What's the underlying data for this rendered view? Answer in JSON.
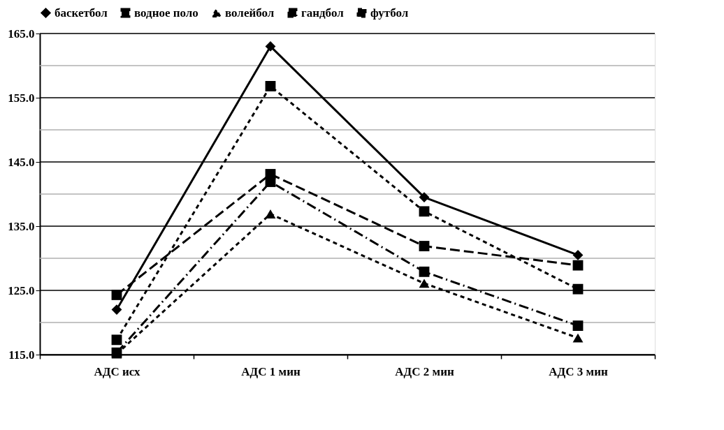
{
  "chart_data": {
    "type": "line",
    "categories": [
      "АДС исх",
      "АДС 1 мин",
      "АДС 2 мин",
      "АДС 3 мин"
    ],
    "series": [
      {
        "name": "баскетбол",
        "color": "#000000",
        "marker": "diamond",
        "line_style": "solid",
        "values": [
          122.0,
          163.0,
          139.5,
          130.5
        ]
      },
      {
        "name": "водное поло",
        "color": "#000000",
        "marker": "square",
        "line_style": "dashed",
        "values": [
          124.3,
          143.1,
          131.9,
          128.9
        ]
      },
      {
        "name": "волейбол",
        "color": "#000000",
        "marker": "triangle",
        "line_style": "dotted",
        "values": [
          115.1,
          136.9,
          126.1,
          117.6
        ]
      },
      {
        "name": "гандбол",
        "color": "#000000",
        "marker": "square",
        "line_style": "dashdot",
        "values": [
          115.3,
          141.9,
          127.9,
          119.5
        ]
      },
      {
        "name": "футбол",
        "color": "#000000",
        "marker": "square",
        "line_style": "dotted",
        "values": [
          117.3,
          156.8,
          137.3,
          125.2
        ]
      }
    ],
    "ylim": [
      115,
      165
    ],
    "yticks": [
      {
        "value": 115,
        "label": "115.0"
      },
      {
        "value": 120,
        "label": null
      },
      {
        "value": 125,
        "label": "125.0"
      },
      {
        "value": 130,
        "label": null
      },
      {
        "value": 135,
        "label": "135.0"
      },
      {
        "value": 140,
        "label": null
      },
      {
        "value": 145,
        "label": "145.0"
      },
      {
        "value": 150,
        "label": null
      },
      {
        "value": 155,
        "label": "155.0"
      },
      {
        "value": 160,
        "label": null
      },
      {
        "value": 165,
        "label": "165.0"
      }
    ],
    "grid": true,
    "legend": "top"
  }
}
